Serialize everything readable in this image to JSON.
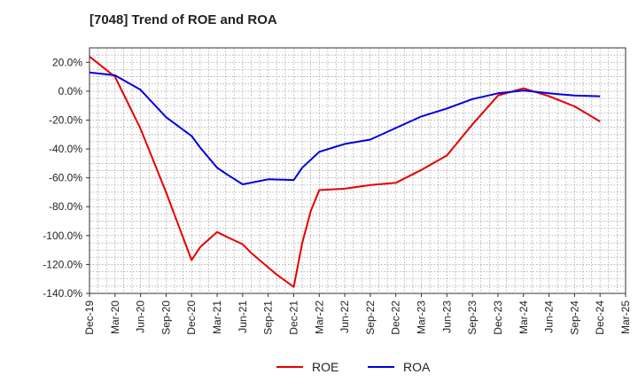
{
  "chart_data": {
    "type": "line",
    "title": "[7048]  Trend of ROE and ROA",
    "xlabel": "",
    "ylabel": "",
    "x": [
      "Dec-19",
      "Mar-20",
      "Jun-20",
      "Sep-20",
      "Dec-20",
      "Mar-21",
      "Jun-21",
      "Sep-21",
      "Dec-21",
      "Mar-22",
      "Jun-22",
      "Sep-22",
      "Dec-22",
      "Mar-23",
      "Jun-23",
      "Sep-23",
      "Dec-23",
      "Mar-24",
      "Jun-24",
      "Sep-24",
      "Dec-24",
      "Mar-25"
    ],
    "ylim": [
      -140,
      30
    ],
    "yticks": [
      20,
      0,
      -20,
      -40,
      -60,
      -80,
      -100,
      -120,
      -140
    ],
    "ytick_labels": [
      "20.0%",
      "0.0%",
      "-20.0%",
      "-40.0%",
      "-60.0%",
      "-80.0%",
      "-100.0%",
      "-120.0%",
      "-140.0%"
    ],
    "grid": true,
    "legend": "bottom-center",
    "series": [
      {
        "name": "ROE",
        "color": "#e60000",
        "points": [
          [
            "Dec-19",
            24
          ],
          [
            "Mar-20",
            10
          ],
          [
            "Jun-20",
            -26
          ],
          [
            "Sep-20",
            -70
          ],
          [
            "Dec-20",
            -117
          ],
          [
            "Jan-21",
            -108
          ],
          [
            "Mar-21",
            -97.5
          ],
          [
            "Apr-21",
            -100.5
          ],
          [
            "Jun-21",
            -106
          ],
          [
            "Jul-21",
            -112
          ],
          [
            "Sep-21",
            -122
          ],
          [
            "Oct-21",
            -127
          ],
          [
            "Dec-21",
            -135.5
          ],
          [
            "Jan-22",
            -105
          ],
          [
            "Feb-22",
            -83
          ],
          [
            "Mar-22",
            -68.5
          ],
          [
            "Jun-22",
            -67.5
          ],
          [
            "Sep-22",
            -65
          ],
          [
            "Dec-22",
            -63.5
          ],
          [
            "Mar-23",
            -54.5
          ],
          [
            "Jun-23",
            -44.5
          ],
          [
            "Sep-23",
            -23
          ],
          [
            "Dec-23",
            -3
          ],
          [
            "Mar-24",
            2
          ],
          [
            "Jun-24",
            -3.5
          ],
          [
            "Sep-24",
            -10.5
          ],
          [
            "Dec-24",
            -21
          ]
        ]
      },
      {
        "name": "ROA",
        "color": "#0000dd",
        "points": [
          [
            "Dec-19",
            13
          ],
          [
            "Mar-20",
            11
          ],
          [
            "Jun-20",
            1
          ],
          [
            "Sep-20",
            -18
          ],
          [
            "Dec-20",
            -31
          ],
          [
            "Jan-21",
            -39
          ],
          [
            "Mar-21",
            -53
          ],
          [
            "Apr-21",
            -57
          ],
          [
            "Jun-21",
            -64.5
          ],
          [
            "Sep-21",
            -61
          ],
          [
            "Dec-21",
            -61.5
          ],
          [
            "Jan-22",
            -53
          ],
          [
            "Mar-22",
            -42
          ],
          [
            "Jun-22",
            -36.5
          ],
          [
            "Sep-22",
            -33.5
          ],
          [
            "Dec-22",
            -25.5
          ],
          [
            "Mar-23",
            -17.5
          ],
          [
            "Jun-23",
            -12
          ],
          [
            "Sep-23",
            -5.5
          ],
          [
            "Dec-23",
            -1.5
          ],
          [
            "Mar-24",
            0.5
          ],
          [
            "Jun-24",
            -1.5
          ],
          [
            "Sep-24",
            -3
          ],
          [
            "Dec-24",
            -3.5
          ]
        ]
      }
    ]
  }
}
